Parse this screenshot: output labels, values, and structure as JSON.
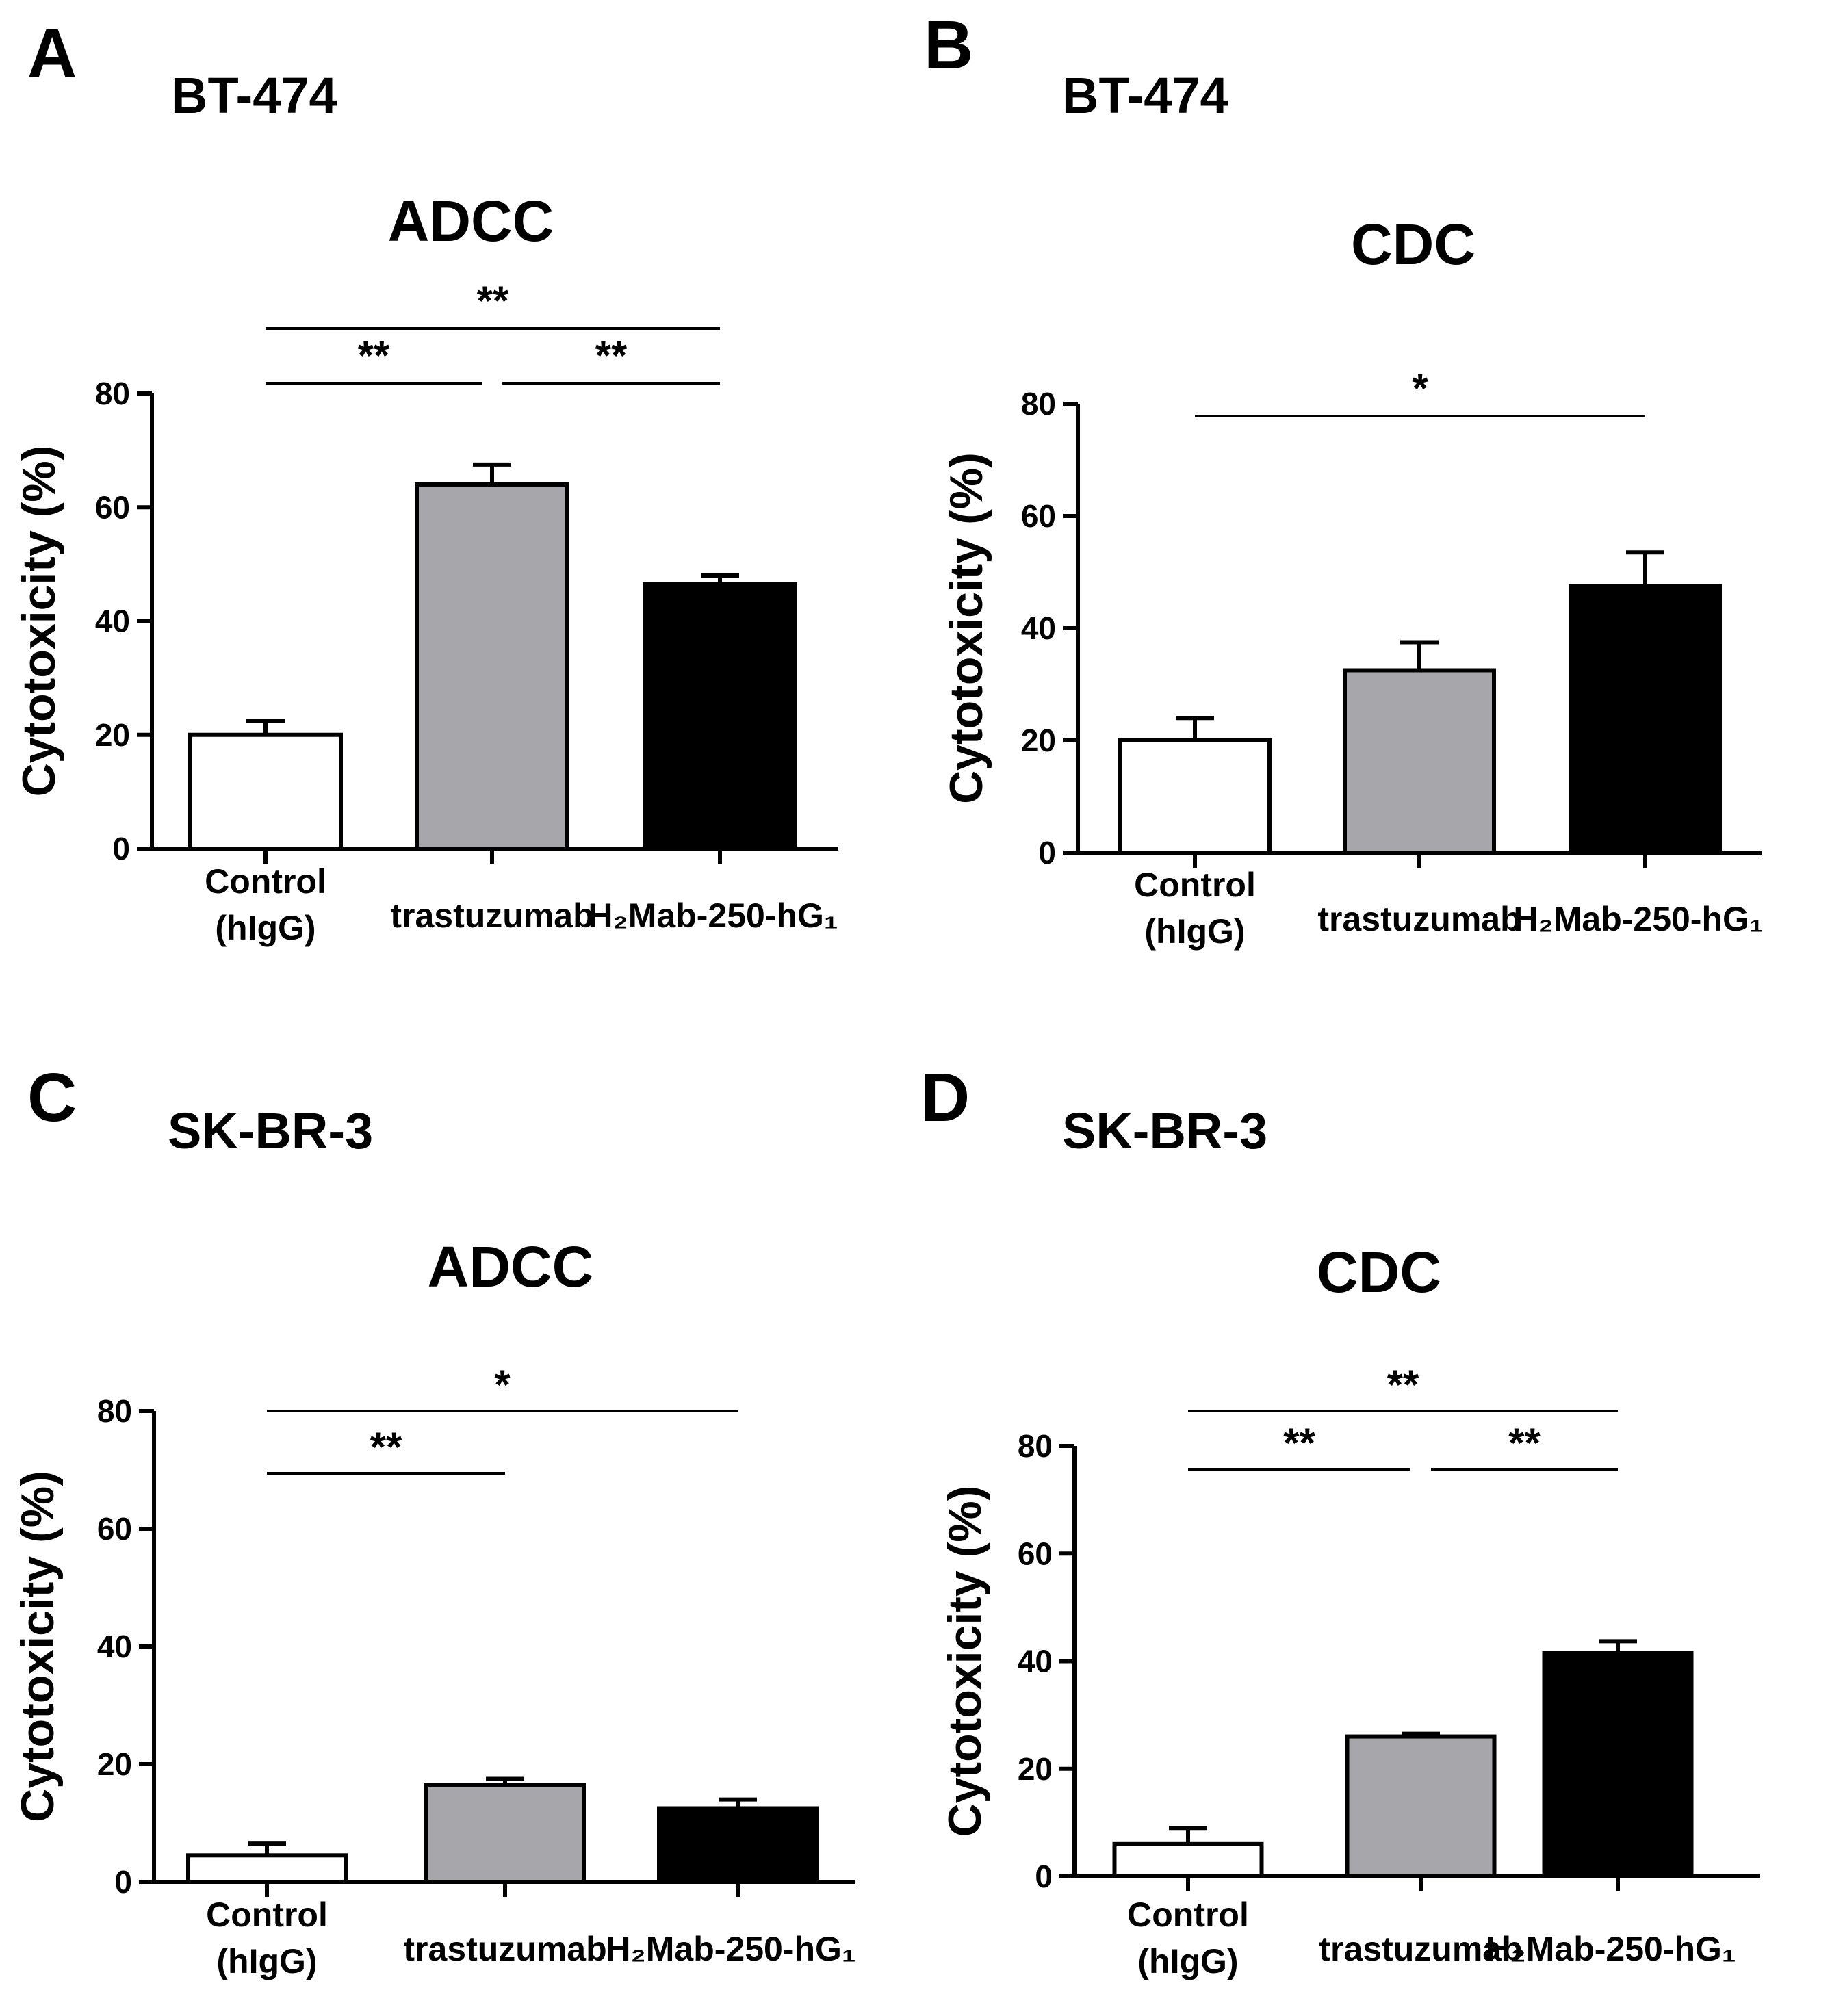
{
  "chart_data": [
    {
      "type": "bar",
      "panel_letter": "A",
      "cell_line": "BT-474",
      "title": "ADCC",
      "ylabel": "Cytotoxicity (%)",
      "xlabel": "",
      "ylim": [
        0,
        80
      ],
      "yticks": [
        0,
        20,
        40,
        60,
        80
      ],
      "categories": [
        {
          "main": "Control",
          "sub": "(hIgG)"
        },
        {
          "main": "trastuzumab",
          "sub": ""
        },
        {
          "main": "H₂Mab-250-hG₁",
          "sub": ""
        }
      ],
      "values": [
        20,
        64,
        46.5
      ],
      "errors": [
        2.5,
        3.5,
        1.5
      ],
      "colors": [
        "#ffffff",
        "#a7a7ab",
        "#000000"
      ],
      "significance": [
        {
          "from": 0,
          "to": 1,
          "label": "**",
          "level": 1
        },
        {
          "from": 1,
          "to": 2,
          "label": "**",
          "level": 1
        },
        {
          "from": 0,
          "to": 2,
          "label": "**",
          "level": 2
        }
      ]
    },
    {
      "type": "bar",
      "panel_letter": "B",
      "cell_line": "BT-474",
      "title": "CDC",
      "ylabel": "Cytotoxicity (%)",
      "xlabel": "",
      "ylim": [
        0,
        80
      ],
      "yticks": [
        0,
        20,
        40,
        60,
        80
      ],
      "categories": [
        {
          "main": "Control",
          "sub": "(hIgG)"
        },
        {
          "main": "trastuzumab",
          "sub": ""
        },
        {
          "main": "H₂Mab-250-hG₁",
          "sub": ""
        }
      ],
      "values": [
        20,
        32.5,
        47.5
      ],
      "errors": [
        4,
        5,
        6
      ],
      "colors": [
        "#ffffff",
        "#a7a7ab",
        "#000000"
      ],
      "significance": [
        {
          "from": 0,
          "to": 2,
          "label": "*",
          "level": 1
        }
      ]
    },
    {
      "type": "bar",
      "panel_letter": "C",
      "cell_line": "SK-BR-3",
      "title": "ADCC",
      "ylabel": "Cytotoxicity (%)",
      "xlabel": "",
      "ylim": [
        0,
        80
      ],
      "yticks": [
        0,
        20,
        40,
        60,
        80
      ],
      "categories": [
        {
          "main": "Control",
          "sub": "(hIgG)"
        },
        {
          "main": "trastuzumab",
          "sub": ""
        },
        {
          "main": "H₂Mab-250-hG₁",
          "sub": ""
        }
      ],
      "values": [
        4.5,
        16.5,
        12.5
      ],
      "errors": [
        2,
        1,
        1.5
      ],
      "colors": [
        "#ffffff",
        "#a7a7ab",
        "#000000"
      ],
      "significance": [
        {
          "from": 0,
          "to": 1,
          "label": "**",
          "level": 1
        },
        {
          "from": 0,
          "to": 2,
          "label": "*",
          "level": 2
        }
      ]
    },
    {
      "type": "bar",
      "panel_letter": "D",
      "cell_line": "SK-BR-3",
      "title": "CDC",
      "ylabel": "Cytotoxicity (%)",
      "xlabel": "",
      "ylim": [
        0,
        80
      ],
      "yticks": [
        0,
        20,
        40,
        60,
        80
      ],
      "categories": [
        {
          "main": "Control",
          "sub": "(hIgG)"
        },
        {
          "main": "trastuzumab",
          "sub": ""
        },
        {
          "main": "H₂Mab-250-hG₁",
          "sub": ""
        }
      ],
      "values": [
        6,
        26,
        41.5
      ],
      "errors": [
        3,
        0.5,
        2.2
      ],
      "colors": [
        "#ffffff",
        "#a7a7ab",
        "#000000"
      ],
      "significance": [
        {
          "from": 0,
          "to": 1,
          "label": "**",
          "level": 1
        },
        {
          "from": 1,
          "to": 2,
          "label": "**",
          "level": 1
        },
        {
          "from": 0,
          "to": 2,
          "label": "**",
          "level": 2
        }
      ]
    }
  ]
}
